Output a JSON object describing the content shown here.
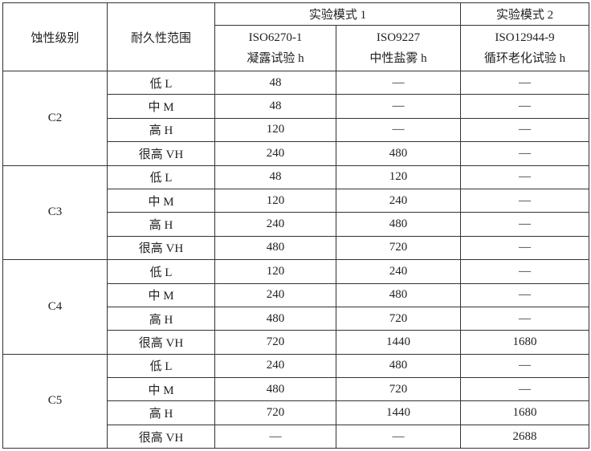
{
  "headers": {
    "grade": "蚀性级别",
    "durability": "耐久性范围",
    "mode1": "实验模式 1",
    "mode2": "实验模式 2",
    "col_iso6270_a": "ISO6270-1",
    "col_iso6270_b": "凝露试验 h",
    "col_iso9227_a": "ISO9227",
    "col_iso9227_b": "中性盐雾 h",
    "col_iso12944_a": "ISO12944-9",
    "col_iso12944_b": "循环老化试验 h"
  },
  "groups": [
    {
      "grade": "C2",
      "rows": [
        [
          "低 L",
          "48",
          "—",
          "—"
        ],
        [
          "中 M",
          "48",
          "—",
          "—"
        ],
        [
          "高 H",
          "120",
          "—",
          "—"
        ],
        [
          "很高 VH",
          "240",
          "480",
          "—"
        ]
      ]
    },
    {
      "grade": "C3",
      "rows": [
        [
          "低 L",
          "48",
          "120",
          "—"
        ],
        [
          "中 M",
          "120",
          "240",
          "—"
        ],
        [
          "高 H",
          "240",
          "480",
          "—"
        ],
        [
          "很高 VH",
          "480",
          "720",
          "—"
        ]
      ]
    },
    {
      "grade": "C4",
      "rows": [
        [
          "低 L",
          "120",
          "240",
          "—"
        ],
        [
          "中 M",
          "240",
          "480",
          "—"
        ],
        [
          "高 H",
          "480",
          "720",
          "—"
        ],
        [
          "很高 VH",
          "720",
          "1440",
          "1680"
        ]
      ]
    },
    {
      "grade": "C5",
      "rows": [
        [
          "低 L",
          "240",
          "480",
          "—"
        ],
        [
          "中 M",
          "480",
          "720",
          "—"
        ],
        [
          "高 H",
          "720",
          "1440",
          "1680"
        ],
        [
          "很高 VH",
          "—",
          "—",
          "2688"
        ]
      ]
    }
  ]
}
